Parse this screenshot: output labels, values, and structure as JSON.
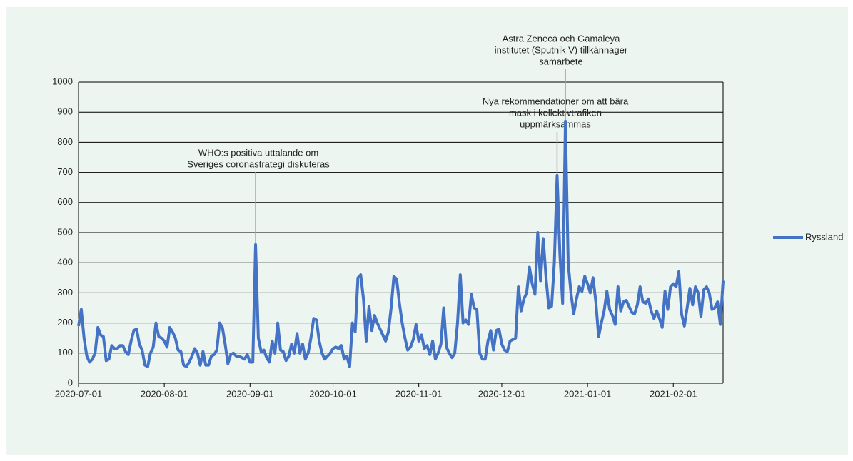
{
  "chart_data": {
    "type": "line",
    "x": [
      "2020-07-01",
      "2020-07-02",
      "2020-07-03",
      "2020-07-04",
      "2020-07-05",
      "2020-07-06",
      "2020-07-07",
      "2020-07-08",
      "2020-07-09",
      "2020-07-10",
      "2020-07-11",
      "2020-07-12",
      "2020-07-13",
      "2020-07-14",
      "2020-07-15",
      "2020-07-16",
      "2020-07-17",
      "2020-07-18",
      "2020-07-19",
      "2020-07-20",
      "2020-07-21",
      "2020-07-22",
      "2020-07-23",
      "2020-07-24",
      "2020-07-25",
      "2020-07-26",
      "2020-07-27",
      "2020-07-28",
      "2020-07-29",
      "2020-07-30",
      "2020-07-31",
      "2020-08-01",
      "2020-08-02",
      "2020-08-03",
      "2020-08-04",
      "2020-08-05",
      "2020-08-06",
      "2020-08-07",
      "2020-08-08",
      "2020-08-09",
      "2020-08-10",
      "2020-08-11",
      "2020-08-12",
      "2020-08-13",
      "2020-08-14",
      "2020-08-15",
      "2020-08-16",
      "2020-08-17",
      "2020-08-18",
      "2020-08-19",
      "2020-08-20",
      "2020-08-21",
      "2020-08-22",
      "2020-08-23",
      "2020-08-24",
      "2020-08-25",
      "2020-08-26",
      "2020-08-27",
      "2020-08-28",
      "2020-08-29",
      "2020-08-30",
      "2020-08-31",
      "2020-09-01",
      "2020-09-02",
      "2020-09-03",
      "2020-09-04",
      "2020-09-05",
      "2020-09-06",
      "2020-09-07",
      "2020-09-08",
      "2020-09-09",
      "2020-09-10",
      "2020-09-11",
      "2020-09-12",
      "2020-09-13",
      "2020-09-14",
      "2020-09-15",
      "2020-09-16",
      "2020-09-17",
      "2020-09-18",
      "2020-09-19",
      "2020-09-20",
      "2020-09-21",
      "2020-09-22",
      "2020-09-23",
      "2020-09-24",
      "2020-09-25",
      "2020-09-26",
      "2020-09-27",
      "2020-09-28",
      "2020-09-29",
      "2020-09-30",
      "2020-10-01",
      "2020-10-02",
      "2020-10-03",
      "2020-10-04",
      "2020-10-05",
      "2020-10-06",
      "2020-10-07",
      "2020-10-08",
      "2020-10-09",
      "2020-10-10",
      "2020-10-11",
      "2020-10-12",
      "2020-10-13",
      "2020-10-14",
      "2020-10-15",
      "2020-10-16",
      "2020-10-17",
      "2020-10-18",
      "2020-10-19",
      "2020-10-20",
      "2020-10-21",
      "2020-10-22",
      "2020-10-23",
      "2020-10-24",
      "2020-10-25",
      "2020-10-26",
      "2020-10-27",
      "2020-10-28",
      "2020-10-29",
      "2020-10-30",
      "2020-10-31",
      "2020-11-01",
      "2020-11-02",
      "2020-11-03",
      "2020-11-04",
      "2020-11-05",
      "2020-11-06",
      "2020-11-07",
      "2020-11-08",
      "2020-11-09",
      "2020-11-10",
      "2020-11-11",
      "2020-11-12",
      "2020-11-13",
      "2020-11-14",
      "2020-11-15",
      "2020-11-16",
      "2020-11-17",
      "2020-11-18",
      "2020-11-19",
      "2020-11-20",
      "2020-11-21",
      "2020-11-22",
      "2020-11-23",
      "2020-11-24",
      "2020-11-25",
      "2020-11-26",
      "2020-11-27",
      "2020-11-28",
      "2020-11-29",
      "2020-11-30",
      "2020-12-01",
      "2020-12-02",
      "2020-12-03",
      "2020-12-04",
      "2020-12-05",
      "2020-12-06",
      "2020-12-07",
      "2020-12-08",
      "2020-12-09",
      "2020-12-10",
      "2020-12-11",
      "2020-12-12",
      "2020-12-13",
      "2020-12-14",
      "2020-12-15",
      "2020-12-16",
      "2020-12-17",
      "2020-12-18",
      "2020-12-19",
      "2020-12-20",
      "2020-12-21",
      "2020-12-22",
      "2020-12-23",
      "2020-12-24",
      "2020-12-25",
      "2020-12-26",
      "2020-12-27",
      "2020-12-28",
      "2020-12-29",
      "2020-12-30",
      "2020-12-31",
      "2021-01-01",
      "2021-01-02",
      "2021-01-03",
      "2021-01-04",
      "2021-01-05",
      "2021-01-06",
      "2021-01-07",
      "2021-01-08",
      "2021-01-09",
      "2021-01-10",
      "2021-01-11",
      "2021-01-12",
      "2021-01-13",
      "2021-01-14",
      "2021-01-15",
      "2021-01-16",
      "2021-01-17",
      "2021-01-18",
      "2021-01-19",
      "2021-01-20",
      "2021-01-21",
      "2021-01-22",
      "2021-01-23",
      "2021-01-24",
      "2021-01-25",
      "2021-01-26",
      "2021-01-27",
      "2021-01-28",
      "2021-01-29",
      "2021-01-30",
      "2021-01-31",
      "2021-02-01",
      "2021-02-02",
      "2021-02-03",
      "2021-02-04",
      "2021-02-05",
      "2021-02-06",
      "2021-02-07",
      "2021-02-08",
      "2021-02-09",
      "2021-02-10",
      "2021-02-11",
      "2021-02-12",
      "2021-02-13",
      "2021-02-14",
      "2021-02-15",
      "2021-02-16",
      "2021-02-17",
      "2021-02-18",
      "2021-02-19"
    ],
    "series": [
      {
        "name": "Ryssland",
        "color": "#4472c4",
        "values": [
          190,
          245,
          150,
          90,
          70,
          80,
          100,
          185,
          160,
          155,
          75,
          80,
          125,
          115,
          115,
          125,
          125,
          105,
          95,
          140,
          175,
          180,
          130,
          110,
          60,
          55,
          100,
          120,
          200,
          155,
          150,
          140,
          120,
          185,
          170,
          150,
          110,
          105,
          60,
          55,
          70,
          90,
          115,
          100,
          60,
          105,
          60,
          60,
          90,
          95,
          110,
          200,
          185,
          130,
          65,
          95,
          100,
          90,
          90,
          85,
          80,
          95,
          70,
          70,
          460,
          150,
          105,
          110,
          85,
          70,
          140,
          100,
          200,
          110,
          105,
          75,
          90,
          130,
          100,
          165,
          100,
          130,
          80,
          100,
          150,
          215,
          210,
          140,
          100,
          80,
          90,
          100,
          115,
          120,
          115,
          125,
          80,
          90,
          55,
          200,
          170,
          350,
          360,
          280,
          140,
          255,
          175,
          225,
          200,
          180,
          160,
          140,
          170,
          250,
          355,
          345,
          265,
          200,
          150,
          110,
          120,
          145,
          195,
          140,
          160,
          115,
          125,
          95,
          140,
          80,
          100,
          130,
          250,
          120,
          100,
          85,
          100,
          200,
          360,
          200,
          210,
          195,
          295,
          250,
          245,
          100,
          80,
          80,
          140,
          175,
          110,
          175,
          180,
          130,
          110,
          105,
          140,
          145,
          150,
          320,
          240,
          280,
          300,
          385,
          330,
          295,
          500,
          340,
          480,
          350,
          250,
          255,
          400,
          690,
          430,
          265,
          870,
          400,
          300,
          230,
          280,
          320,
          305,
          355,
          330,
          300,
          350,
          270,
          155,
          200,
          240,
          305,
          245,
          225,
          195,
          320,
          240,
          270,
          275,
          255,
          235,
          230,
          260,
          320,
          270,
          265,
          280,
          240,
          215,
          240,
          215,
          185,
          305,
          245,
          320,
          330,
          320,
          370,
          230,
          190,
          250,
          315,
          260,
          320,
          300,
          220,
          310,
          320,
          300,
          245,
          250,
          270,
          195,
          340
        ]
      }
    ],
    "xlim": [
      "2020-07-01",
      "2021-02-19"
    ],
    "xticks": [
      "2020-07-01",
      "2020-08-01",
      "2020-09-01",
      "2020-10-01",
      "2020-11-01",
      "2020-12-01",
      "2021-01-01",
      "2021-02-01"
    ],
    "ylim": [
      0,
      1000
    ],
    "yticks": [
      0,
      100,
      200,
      300,
      400,
      500,
      600,
      700,
      800,
      900,
      1000
    ],
    "grid": true,
    "legend": "right",
    "annotations": [
      {
        "lines": [
          "WHO:s positiva uttalande om",
          "Sveriges coronastrategi diskuteras"
        ],
        "x": "2020-09-03"
      },
      {
        "lines": [
          "Nya rekommendationer om att bära",
          "mask i kollektivtrafiken",
          "uppmärksammas"
        ],
        "x": "2020-12-21"
      },
      {
        "lines": [
          "Astra Zeneca och Gamaleya",
          "institutet (Sputnik V) tillkännager",
          "samarbete"
        ],
        "x": "2020-12-24"
      }
    ]
  }
}
